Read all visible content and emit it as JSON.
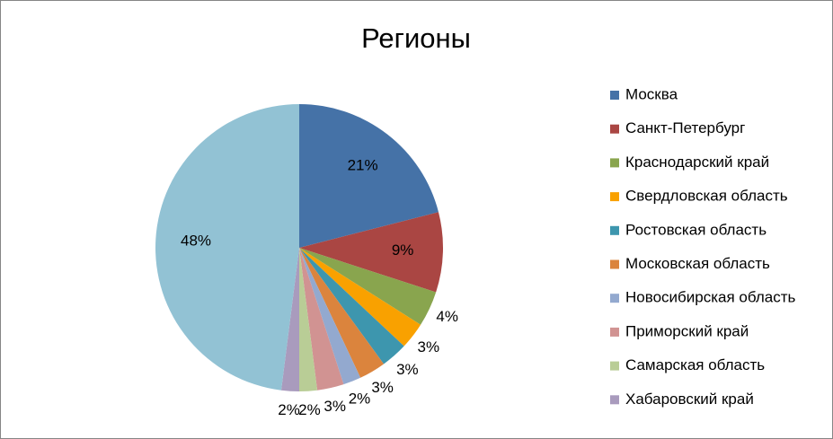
{
  "chart_data": {
    "type": "pie",
    "title": "Регионы",
    "categories": [
      "Москва",
      "Санкт-Петербург",
      "Краснодарский край",
      "Свердловская область",
      "Ростовская область",
      "Московская область",
      "Новосибирская область",
      "Приморский край",
      "Самарская область",
      "Хабаровский край",
      null
    ],
    "values": [
      21,
      9,
      4,
      3,
      3,
      3,
      2,
      3,
      2,
      2,
      48
    ],
    "value_labels": [
      "21%",
      "9%",
      "4%",
      "3%",
      "3%",
      "3%",
      "2%",
      "3%",
      "2%",
      "2%",
      "48%"
    ],
    "colors": [
      "#4572a7",
      "#aa4643",
      "#89a54e",
      "#f9a100",
      "#3d96ae",
      "#db843d",
      "#93a9cf",
      "#d19392",
      "#b9cd96",
      "#a99bbd",
      "#92c2d4"
    ],
    "legend": "right"
  }
}
